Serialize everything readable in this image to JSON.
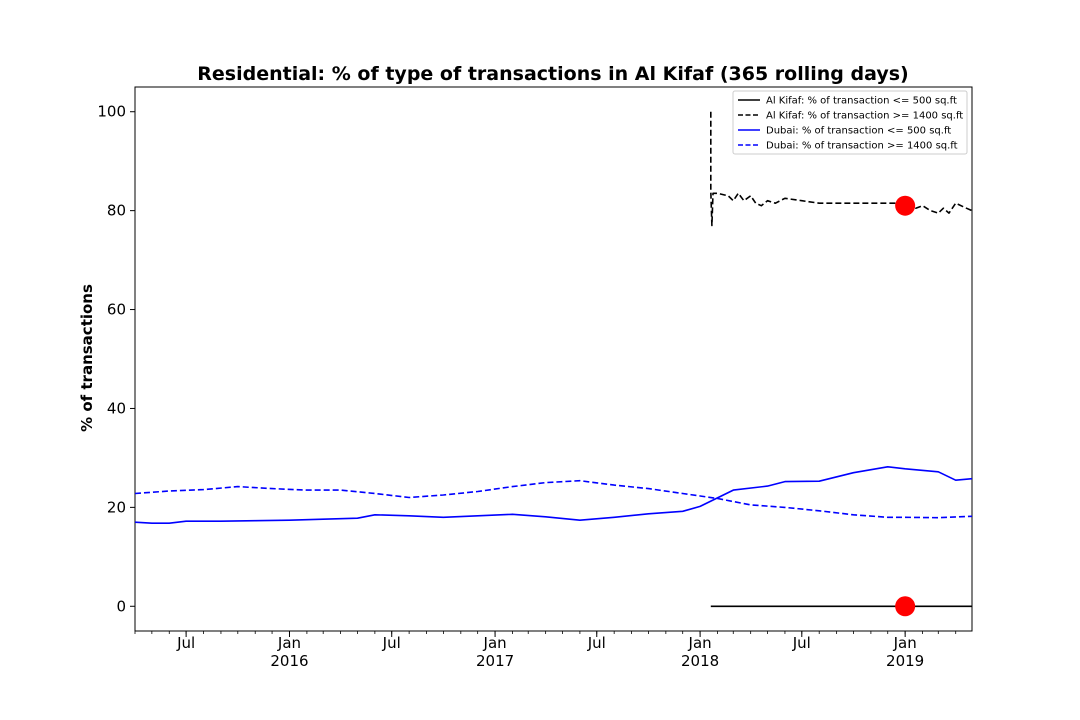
{
  "chart_data": {
    "type": "line",
    "title": "Residential: % of type of transactions in Al Kifaf (365 rolling days)",
    "xlabel": "",
    "ylabel": "% of transactions",
    "xlim": [
      "2015-04-01",
      "2019-04-30"
    ],
    "ylim": [
      -5,
      105
    ],
    "grid": false,
    "legend_position": "top-right",
    "y_ticks": [
      0,
      20,
      40,
      60,
      80,
      100
    ],
    "x_ticks": [
      {
        "date": "2015-07-01",
        "label": "Jul",
        "sublabel": ""
      },
      {
        "date": "2016-01-01",
        "label": "Jan",
        "sublabel": "2016"
      },
      {
        "date": "2016-07-01",
        "label": "Jul",
        "sublabel": ""
      },
      {
        "date": "2017-01-01",
        "label": "Jan",
        "sublabel": "2017"
      },
      {
        "date": "2017-07-01",
        "label": "Jul",
        "sublabel": ""
      },
      {
        "date": "2018-01-01",
        "label": "Jan",
        "sublabel": "2018"
      },
      {
        "date": "2018-07-01",
        "label": "Jul",
        "sublabel": ""
      },
      {
        "date": "2019-01-01",
        "label": "Jan",
        "sublabel": "2019"
      }
    ],
    "series": [
      {
        "name": "Al Kifaf: % of transaction <= 500 sq.ft",
        "color": "#000000",
        "dash": "solid",
        "x": [
          "2018-01-20",
          "2018-06-01",
          "2019-01-01",
          "2019-04-30"
        ],
        "y": [
          0,
          0,
          0,
          0
        ]
      },
      {
        "name": "Al Kifaf: % of transaction >= 1400 sq.ft",
        "color": "#000000",
        "dash": "dashed",
        "x": [
          "2018-01-20",
          "2018-01-20",
          "2018-01-22",
          "2018-01-24",
          "2018-02-01",
          "2018-02-20",
          "2018-03-01",
          "2018-03-10",
          "2018-03-20",
          "2018-04-01",
          "2018-04-10",
          "2018-04-20",
          "2018-05-01",
          "2018-05-15",
          "2018-06-01",
          "2018-07-01",
          "2018-08-01",
          "2018-09-01",
          "2018-10-01",
          "2018-11-01",
          "2018-12-01",
          "2019-01-01",
          "2019-01-20",
          "2019-02-01",
          "2019-02-15",
          "2019-03-01",
          "2019-03-10",
          "2019-03-20",
          "2019-04-01",
          "2019-04-20",
          "2019-04-30"
        ],
        "y": [
          100,
          84,
          77,
          83.5,
          83.5,
          83,
          82,
          83.5,
          82,
          83,
          81.5,
          81,
          82,
          81.5,
          82.5,
          82,
          81.5,
          81.5,
          81.5,
          81.5,
          81.5,
          81.5,
          80.5,
          81,
          80,
          79.5,
          80.5,
          79.5,
          81.5,
          80.5,
          80
        ]
      },
      {
        "name": "Dubai: % of transaction <= 500 sq.ft",
        "color": "#0000ff",
        "dash": "solid",
        "x": [
          "2015-04-01",
          "2015-05-01",
          "2015-06-01",
          "2015-07-01",
          "2015-09-01",
          "2015-11-01",
          "2016-01-01",
          "2016-03-01",
          "2016-05-01",
          "2016-06-01",
          "2016-08-01",
          "2016-10-01",
          "2016-12-01",
          "2017-02-01",
          "2017-04-01",
          "2017-06-01",
          "2017-08-01",
          "2017-10-01",
          "2017-12-01",
          "2018-01-01",
          "2018-03-01",
          "2018-05-01",
          "2018-06-01",
          "2018-08-01",
          "2018-10-01",
          "2018-12-01",
          "2019-01-01",
          "2019-03-01",
          "2019-04-01",
          "2019-04-30"
        ],
        "y": [
          17,
          16.8,
          16.8,
          17.2,
          17.2,
          17.3,
          17.4,
          17.6,
          17.8,
          18.5,
          18.3,
          18,
          18.3,
          18.6,
          18.1,
          17.4,
          18,
          18.7,
          19.2,
          20.2,
          23.5,
          24.3,
          25.2,
          25.3,
          27,
          28.2,
          27.8,
          27.2,
          25.5,
          25.8
        ]
      },
      {
        "name": "Dubai: % of transaction >= 1400 sq.ft",
        "color": "#0000ff",
        "dash": "dashed",
        "x": [
          "2015-04-01",
          "2015-06-01",
          "2015-08-01",
          "2015-10-01",
          "2015-12-01",
          "2016-02-01",
          "2016-04-01",
          "2016-06-01",
          "2016-08-01",
          "2016-10-01",
          "2016-12-01",
          "2017-02-01",
          "2017-04-01",
          "2017-06-01",
          "2017-08-01",
          "2017-10-01",
          "2017-12-01",
          "2018-02-01",
          "2018-04-01",
          "2018-06-01",
          "2018-08-01",
          "2018-10-01",
          "2018-12-01",
          "2019-01-01",
          "2019-03-01",
          "2019-04-30"
        ],
        "y": [
          22.8,
          23.3,
          23.6,
          24.2,
          23.8,
          23.5,
          23.5,
          22.8,
          22,
          22.5,
          23.2,
          24.2,
          25,
          25.4,
          24.5,
          23.8,
          22.8,
          21.8,
          20.5,
          20,
          19.3,
          18.5,
          18,
          18,
          17.9,
          18.2
        ]
      }
    ],
    "markers": [
      {
        "x": "2019-01-01",
        "y": 81,
        "color": "#ff0000"
      },
      {
        "x": "2019-01-01",
        "y": 0,
        "color": "#ff0000"
      }
    ]
  }
}
